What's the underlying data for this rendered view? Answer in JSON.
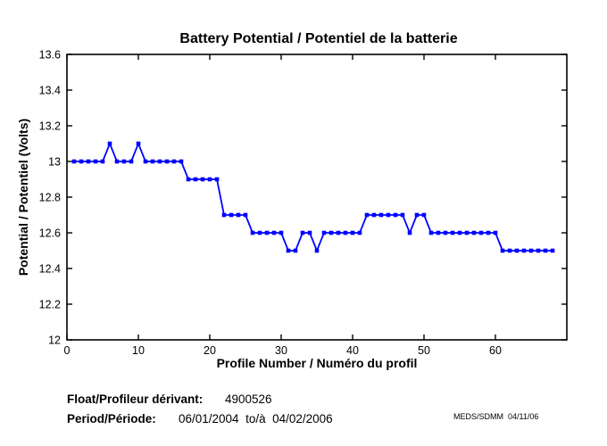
{
  "chart_data": {
    "type": "line",
    "title": "Battery Potential / Potentiel de la batterie",
    "xlabel": "Profile Number / Numéro du profil",
    "ylabel": "Potential / Potentiel (Volts)",
    "xlim": [
      0,
      70
    ],
    "ylim": [
      12,
      13.6
    ],
    "xticks": [
      0,
      10,
      20,
      30,
      40,
      50,
      60
    ],
    "xtick_labels": [
      "0",
      "10",
      "20",
      "30",
      "40",
      "50",
      "60"
    ],
    "yticks": [
      12,
      12.2,
      12.4,
      12.6,
      12.8,
      13,
      13.2,
      13.4,
      13.6
    ],
    "ytick_labels": [
      "12",
      "12.2",
      "12.4",
      "12.6",
      "12.8",
      "13",
      "13.2",
      "13.4",
      "13.6"
    ],
    "grid": false,
    "legend": null,
    "box": true,
    "series": [
      {
        "name": "battery-potential",
        "color": "#0000ff",
        "marker": "square",
        "x": [
          1,
          2,
          3,
          4,
          5,
          6,
          7,
          8,
          9,
          10,
          11,
          12,
          13,
          14,
          15,
          16,
          17,
          18,
          19,
          20,
          21,
          22,
          23,
          24,
          25,
          26,
          27,
          28,
          29,
          30,
          31,
          32,
          33,
          34,
          35,
          36,
          37,
          38,
          39,
          40,
          41,
          42,
          43,
          44,
          45,
          46,
          47,
          48,
          49,
          50,
          51,
          52,
          53,
          54,
          55,
          56,
          57,
          58,
          59,
          60,
          61,
          62,
          63,
          64,
          65,
          66,
          67,
          68
        ],
        "y": [
          13,
          13,
          13,
          13,
          13,
          13.1,
          13,
          13,
          13,
          13.1,
          13,
          13,
          13,
          13,
          13,
          13,
          12.9,
          12.9,
          12.9,
          12.9,
          12.9,
          12.7,
          12.7,
          12.7,
          12.7,
          12.6,
          12.6,
          12.6,
          12.6,
          12.6,
          12.5,
          12.5,
          12.6,
          12.6,
          12.5,
          12.6,
          12.6,
          12.6,
          12.6,
          12.6,
          12.6,
          12.7,
          12.7,
          12.7,
          12.7,
          12.7,
          12.7,
          12.6,
          12.7,
          12.7,
          12.6,
          12.6,
          12.6,
          12.6,
          12.6,
          12.6,
          12.6,
          12.6,
          12.6,
          12.6,
          12.5,
          12.5,
          12.5,
          12.5,
          12.5,
          12.5,
          12.5,
          12.5
        ]
      }
    ]
  },
  "footer": {
    "float_label": "Float/Profileur dérivant:",
    "float_value": "4900526",
    "period_label": "Period/Période:",
    "period_value": "06/01/2004  to/à  04/02/2006",
    "credit": "MEDS/SDMM  04/11/06"
  },
  "colors": {
    "line": "#0000ff",
    "axis": "#000000",
    "background": "#ffffff",
    "text": "#000000"
  }
}
